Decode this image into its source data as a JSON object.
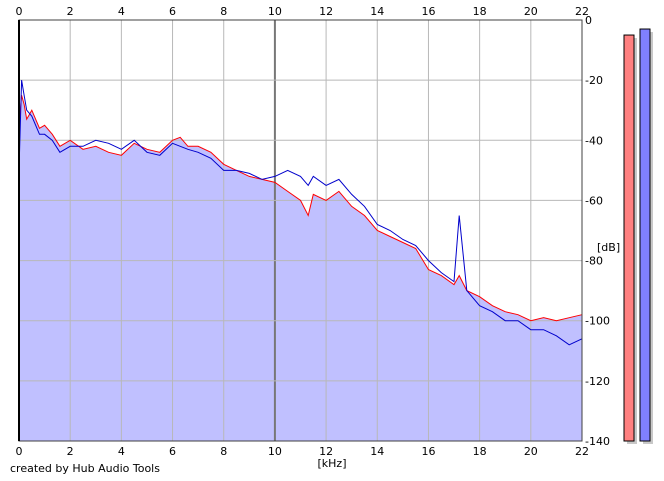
{
  "credit": "created by Hub Audio Tools",
  "chart_data": {
    "type": "area",
    "xlabel": "[kHz]",
    "ylabel": "[dB]",
    "xlim": [
      0,
      22
    ],
    "ylim": [
      -140,
      0
    ],
    "xticks": [
      0,
      2,
      4,
      6,
      8,
      10,
      12,
      14,
      16,
      18,
      20,
      22
    ],
    "yticks": [
      0,
      -20,
      -40,
      -60,
      -80,
      -100,
      -120,
      -140
    ],
    "xtick_labels": [
      "0",
      "2",
      "4",
      "6",
      "8",
      "10",
      "12",
      "14",
      "16",
      "18",
      "20",
      "22"
    ],
    "ytick_labels": [
      "0",
      "-20",
      "-40",
      "-60",
      "-80",
      "-100",
      "-120",
      "-140"
    ],
    "grid": true,
    "fill_color": "#c0c0ff",
    "series": [
      {
        "color": "#ff0000",
        "x": [
          0,
          0.1,
          0.2,
          0.3,
          0.5,
          0.8,
          1.0,
          1.3,
          1.6,
          2.0,
          2.5,
          3.0,
          3.5,
          4.0,
          4.5,
          5.0,
          5.5,
          6.0,
          6.3,
          6.6,
          7.0,
          7.5,
          8.0,
          8.5,
          9.0,
          9.5,
          10.0,
          10.5,
          11.0,
          11.3,
          11.5,
          12.0,
          12.5,
          13.0,
          13.5,
          14.0,
          14.5,
          15.0,
          15.5,
          16.0,
          16.5,
          17.0,
          17.2,
          17.5,
          18.0,
          18.5,
          19.0,
          19.5,
          20.0,
          20.5,
          21.0,
          21.5,
          22.0
        ],
        "values": [
          -35,
          -25,
          -28,
          -33,
          -30,
          -36,
          -35,
          -38,
          -42,
          -40,
          -43,
          -42,
          -44,
          -45,
          -41,
          -43,
          -44,
          -40,
          -39,
          -42,
          -42,
          -44,
          -48,
          -50,
          -52,
          -53,
          -54,
          -57,
          -60,
          -65,
          -58,
          -60,
          -57,
          -62,
          -65,
          -70,
          -72,
          -74,
          -76,
          -83,
          -85,
          -88,
          -85,
          -90,
          -92,
          -95,
          -97,
          -98,
          -100,
          -99,
          -100,
          -99,
          -98
        ]
      },
      {
        "color": "#0000cc",
        "x": [
          0,
          0.1,
          0.2,
          0.3,
          0.5,
          0.8,
          1.0,
          1.3,
          1.6,
          2.0,
          2.5,
          3.0,
          3.5,
          4.0,
          4.5,
          5.0,
          5.5,
          6.0,
          6.3,
          6.6,
          7.0,
          7.5,
          8.0,
          8.5,
          9.0,
          9.5,
          10.0,
          10.5,
          11.0,
          11.3,
          11.5,
          12.0,
          12.5,
          13.0,
          13.5,
          14.0,
          14.5,
          15.0,
          15.5,
          16.0,
          16.5,
          17.0,
          17.2,
          17.5,
          18.0,
          18.5,
          19.0,
          19.5,
          20.0,
          20.5,
          21.0,
          21.5,
          22.0
        ],
        "values": [
          -50,
          -20,
          -25,
          -30,
          -32,
          -38,
          -38,
          -40,
          -44,
          -42,
          -42,
          -40,
          -41,
          -43,
          -40,
          -44,
          -45,
          -41,
          -42,
          -43,
          -44,
          -46,
          -50,
          -50,
          -51,
          -53,
          -52,
          -50,
          -52,
          -55,
          -52,
          -55,
          -53,
          -58,
          -62,
          -68,
          -70,
          -73,
          -75,
          -80,
          -84,
          -87,
          -65,
          -90,
          -95,
          -97,
          -100,
          -100,
          -103,
          -103,
          -105,
          -108,
          -106
        ]
      }
    ],
    "level_meters": [
      {
        "color": "#ff8080",
        "value": -5
      },
      {
        "color": "#8080ff",
        "value": -3
      }
    ]
  }
}
